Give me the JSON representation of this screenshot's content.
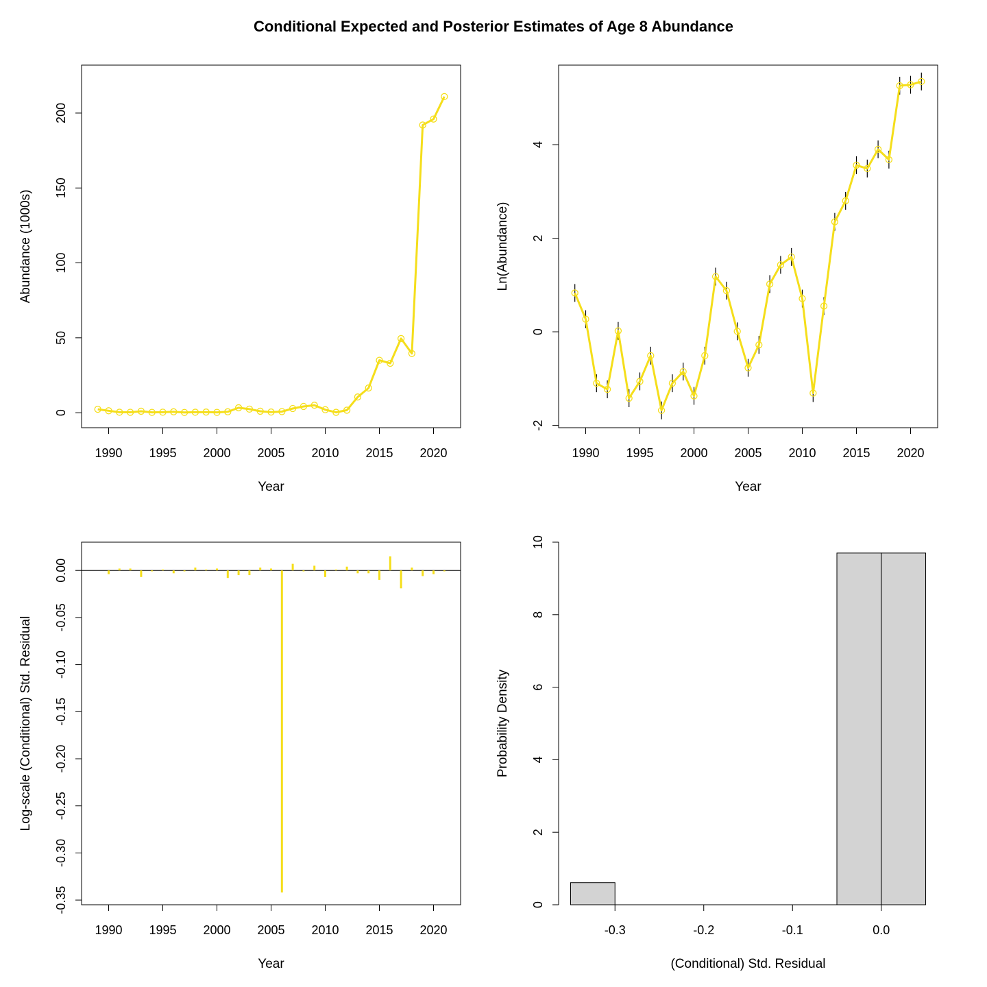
{
  "title": "Conditional Expected and Posterior Estimates of Age 8 Abundance",
  "colors": {
    "series": "#F5DE1B",
    "bar_fill": "#D3D3D3",
    "axis": "#000000",
    "error_bar": "#000000"
  },
  "chart_data": [
    {
      "type": "line",
      "panel": "top-left",
      "xlabel": "Year",
      "ylabel": "Abundance (1000s)",
      "xlim": [
        1987.5,
        2022.5
      ],
      "ylim": [
        -10,
        232
      ],
      "xticks": [
        1990,
        1995,
        2000,
        2005,
        2010,
        2015,
        2020
      ],
      "yticks": [
        0,
        50,
        100,
        150,
        200
      ],
      "x": [
        1989,
        1990,
        1991,
        1992,
        1993,
        1994,
        1995,
        1996,
        1997,
        1998,
        1999,
        2000,
        2001,
        2002,
        2003,
        2004,
        2005,
        2006,
        2007,
        2008,
        2009,
        2010,
        2011,
        2012,
        2013,
        2014,
        2015,
        2016,
        2017,
        2018,
        2019,
        2020,
        2021
      ],
      "series": [
        {
          "values": [
            2.3,
            1.3,
            0.33,
            0.29,
            1.0,
            0.24,
            0.35,
            0.6,
            0.18,
            0.33,
            0.43,
            0.25,
            0.6,
            3.3,
            2.4,
            1.0,
            0.45,
            0.76,
            2.8,
            4.2,
            5.0,
            2.0,
            0.27,
            1.7,
            10.5,
            16.5,
            35,
            33,
            49.5,
            39.5,
            192,
            196,
            211
          ]
        }
      ]
    },
    {
      "type": "line",
      "panel": "top-right",
      "xlabel": "Year",
      "ylabel": "Ln(Abundance)",
      "xlim": [
        1987.5,
        2022.5
      ],
      "ylim": [
        -2.05,
        5.7
      ],
      "xticks": [
        1990,
        1995,
        2000,
        2005,
        2010,
        2015,
        2020
      ],
      "yticks": [
        -2,
        0,
        2,
        4
      ],
      "x": [
        1989,
        1990,
        1991,
        1992,
        1993,
        1994,
        1995,
        1996,
        1997,
        1998,
        1999,
        2000,
        2001,
        2002,
        2003,
        2004,
        2005,
        2006,
        2007,
        2008,
        2009,
        2010,
        2011,
        2012,
        2013,
        2014,
        2015,
        2016,
        2017,
        2018,
        2019,
        2020,
        2021
      ],
      "series": [
        {
          "values": [
            0.83,
            0.27,
            -1.1,
            -1.23,
            0.02,
            -1.42,
            -1.06,
            -0.51,
            -1.68,
            -1.1,
            -0.85,
            -1.37,
            -0.51,
            1.18,
            0.88,
            0.01,
            -0.77,
            -0.28,
            1.02,
            1.43,
            1.6,
            0.71,
            -1.31,
            0.55,
            2.35,
            2.8,
            3.56,
            3.49,
            3.9,
            3.68,
            5.26,
            5.28,
            5.35
          ]
        }
      ]
    },
    {
      "type": "bar",
      "panel": "bottom-left",
      "xlabel": "Year",
      "ylabel": "Log-scale (Conditional) Std. Residual",
      "xlim": [
        1987.5,
        2022.5
      ],
      "ylim": [
        -0.355,
        0.03
      ],
      "xticks": [
        1990,
        1995,
        2000,
        2005,
        2010,
        2015,
        2020
      ],
      "yticks": [
        0.0,
        -0.05,
        -0.1,
        -0.15,
        -0.2,
        -0.25,
        -0.3,
        -0.35
      ],
      "ytick_labels": [
        "0.00",
        "-0.05",
        "-0.10",
        "-0.15",
        "-0.20",
        "-0.25",
        "-0.30",
        "-0.35"
      ],
      "x": [
        1990,
        1991,
        1992,
        1993,
        1994,
        1995,
        1996,
        1997,
        1998,
        1999,
        2000,
        2001,
        2002,
        2003,
        2004,
        2005,
        2006,
        2007,
        2008,
        2009,
        2010,
        2011,
        2012,
        2013,
        2014,
        2015,
        2016,
        2017,
        2018,
        2019,
        2020,
        2021
      ],
      "values": [
        -0.004,
        0.002,
        0.002,
        -0.007,
        -0.001,
        0.001,
        -0.003,
        -0.001,
        0.003,
        0.001,
        0.002,
        -0.008,
        -0.005,
        -0.005,
        0.003,
        0.002,
        -0.342,
        0.007,
        -0.001,
        0.005,
        -0.007,
        0.001,
        0.004,
        -0.003,
        -0.003,
        -0.01,
        0.015,
        -0.019,
        0.003,
        -0.006,
        -0.004,
        -0.001
      ]
    },
    {
      "type": "bar",
      "panel": "bottom-right",
      "xlabel": "(Conditional) Std. Residual",
      "ylabel": "Probability Density",
      "xlim": [
        -0.3635,
        0.0635
      ],
      "ylim": [
        0,
        10
      ],
      "xticks": [
        -0.3,
        -0.2,
        -0.1,
        0.0
      ],
      "xtick_labels": [
        "-0.3",
        "-0.2",
        "-0.1",
        "0.0"
      ],
      "yticks": [
        0,
        2,
        4,
        6,
        8,
        10
      ],
      "bins": [
        [
          -0.35,
          -0.3
        ],
        [
          -0.3,
          -0.25
        ],
        [
          -0.25,
          -0.2
        ],
        [
          -0.2,
          -0.15
        ],
        [
          -0.15,
          -0.1
        ],
        [
          -0.1,
          -0.05
        ],
        [
          -0.05,
          0.0
        ],
        [
          0.0,
          0.05
        ]
      ],
      "values": [
        0.61,
        0,
        0,
        0,
        0,
        0,
        9.7,
        9.7
      ]
    }
  ]
}
